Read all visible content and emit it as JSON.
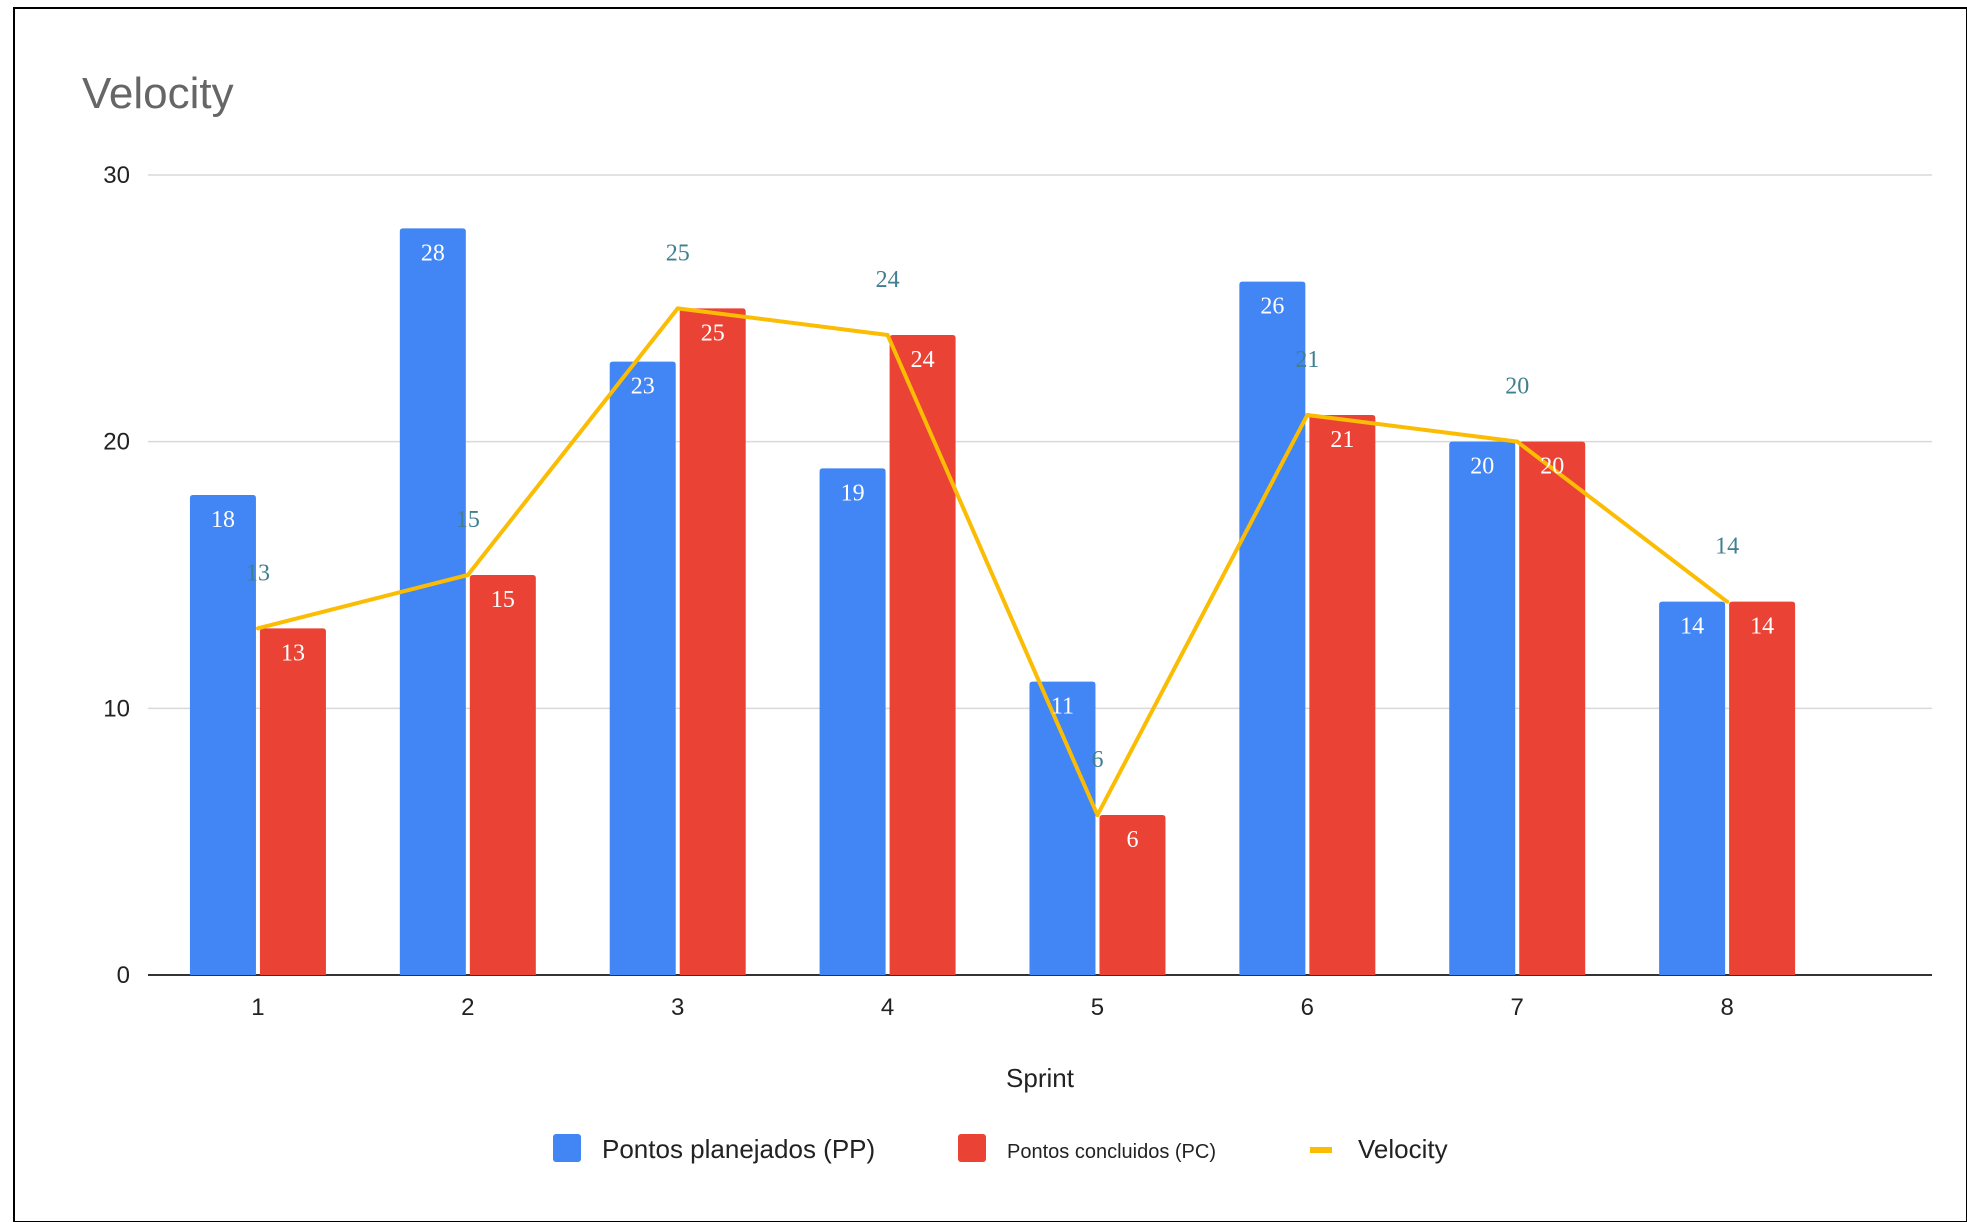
{
  "chart_data": {
    "type": "bar",
    "title": "Velocity",
    "xlabel": "Sprint",
    "ylabel": "",
    "ylim": [
      0,
      30
    ],
    "yticks": [
      0,
      10,
      20,
      30
    ],
    "grid": true,
    "legend_position": "bottom",
    "categories": [
      "1",
      "2",
      "3",
      "4",
      "5",
      "6",
      "7",
      "8"
    ],
    "series": [
      {
        "name": "Pontos planejados (PP)",
        "kind": "bar",
        "color": "#4285f4",
        "values": [
          18,
          28,
          23,
          19,
          11,
          26,
          20,
          14
        ]
      },
      {
        "name": "Pontos concluidos (PC)",
        "kind": "bar",
        "color": "#ea4335",
        "values": [
          13,
          15,
          25,
          24,
          6,
          21,
          20,
          14
        ]
      },
      {
        "name": "Velocity",
        "kind": "line",
        "color": "#fbbc04",
        "values": [
          13,
          15,
          25,
          24,
          6,
          21,
          20,
          14
        ]
      }
    ]
  }
}
